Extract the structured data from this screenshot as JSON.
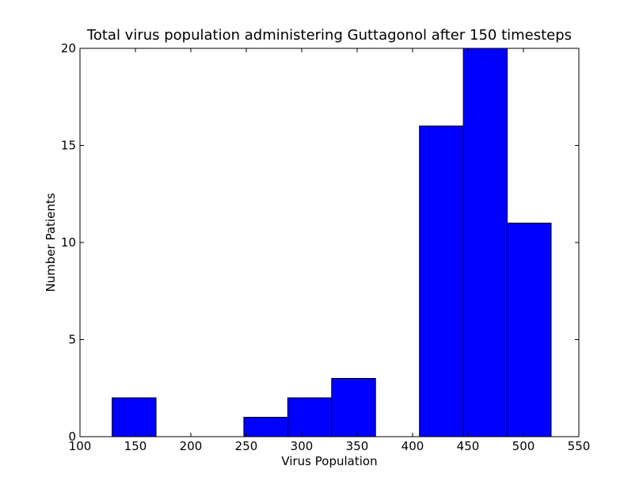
{
  "chart_data": {
    "type": "bar",
    "title": "Total virus population administering Guttagonol after 150 timesteps",
    "xlabel": "Virus Population",
    "ylabel": "Number Patients",
    "xlim": [
      100,
      550
    ],
    "ylim": [
      0,
      20
    ],
    "xticks": [
      100,
      150,
      200,
      250,
      300,
      350,
      400,
      450,
      500,
      550
    ],
    "yticks": [
      0,
      5,
      10,
      15,
      20
    ],
    "bar_color": "#0000ff",
    "bins": [
      {
        "x0": 129,
        "x1": 168.6,
        "value": 2
      },
      {
        "x0": 168.6,
        "x1": 208.2,
        "value": 0
      },
      {
        "x0": 208.2,
        "x1": 247.8,
        "value": 0
      },
      {
        "x0": 247.8,
        "x1": 287.4,
        "value": 1
      },
      {
        "x0": 287.4,
        "x1": 327.0,
        "value": 2
      },
      {
        "x0": 327.0,
        "x1": 366.6,
        "value": 3
      },
      {
        "x0": 366.6,
        "x1": 406.2,
        "value": 0
      },
      {
        "x0": 406.2,
        "x1": 445.8,
        "value": 16
      },
      {
        "x0": 445.8,
        "x1": 485.4,
        "value": 20
      },
      {
        "x0": 485.4,
        "x1": 525.0,
        "value": 11
      }
    ]
  }
}
